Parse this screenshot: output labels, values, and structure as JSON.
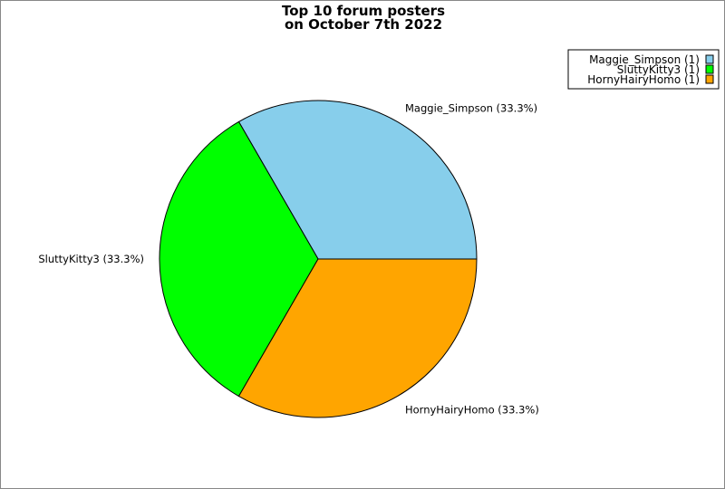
{
  "chart_data": {
    "type": "pie",
    "title_lines": [
      "Top 10 forum posters",
      "on October 7th 2022"
    ],
    "slices": [
      {
        "label": "Maggie_Simpson",
        "value": 1,
        "percent_label": "Maggie_Simpson (33.3%)",
        "legend_label": "Maggie_Simpson (1)",
        "color": "#87ceeb"
      },
      {
        "label": "SluttyKitty3",
        "value": 1,
        "percent_label": "SluttyKitty3 (33.3%)",
        "legend_label": "SluttyKitty3 (1)",
        "color": "#00ff00"
      },
      {
        "label": "HornyHairyHomo",
        "value": 1,
        "percent_label": "HornyHairyHomo (33.3%)",
        "legend_label": "HornyHairyHomo (1)",
        "color": "#ffa500"
      }
    ],
    "start_angle_deg": 0,
    "direction": "counterclockwise",
    "legend_position": "top-right"
  }
}
